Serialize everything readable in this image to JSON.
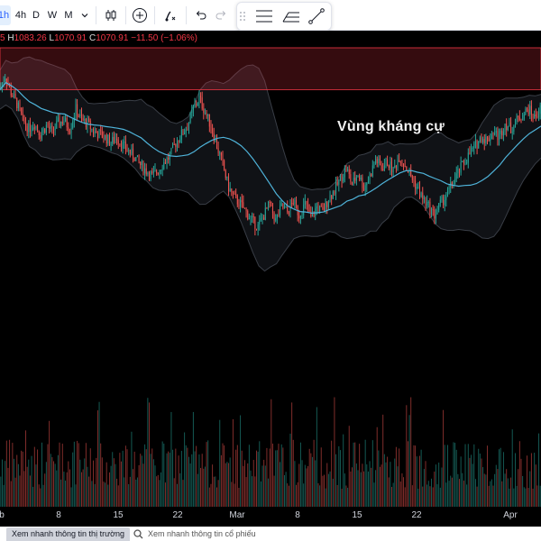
{
  "toolbar": {
    "timeframes": [
      {
        "label": "1h",
        "active": true
      },
      {
        "label": "4h",
        "active": false
      },
      {
        "label": "D",
        "active": false
      },
      {
        "label": "W",
        "active": false
      },
      {
        "label": "M",
        "active": false
      }
    ],
    "icons": [
      "chevron-down-icon",
      "candlestick-icon",
      "add-indicator-icon",
      "alert-icon",
      "undo-icon",
      "redo-icon"
    ]
  },
  "floating_toolbar": {
    "icons": [
      "drag-handle-icon",
      "horizontal-lines-icon",
      "fib-tool-icon",
      "trend-line-icon"
    ]
  },
  "ohlc": {
    "o_tail": "5",
    "h_key": "H",
    "h_val": "1083.26",
    "l_key": "L",
    "l_val": "1070.91",
    "c_key": "C",
    "c_val": "1070.91",
    "change": "−11.50 (−1.06%)"
  },
  "annotation": {
    "resistance_label": "Vùng kháng cự"
  },
  "colors": {
    "up": "#26a69a",
    "down": "#ef5350",
    "basis": "#4fb3d9",
    "zone": "#f23645"
  },
  "x_axis": {
    "labels": [
      "b",
      "8",
      "15",
      "22",
      "Mar",
      "8",
      "15",
      "22",
      "Apr"
    ]
  },
  "bottom_tabs": {
    "market": "Xem nhanh thông tin thị trường",
    "stock": "Xem nhanh thông tin cổ phiếu"
  },
  "chart_data": {
    "type": "candlestick",
    "ylim": [
      985,
      1090
    ],
    "resistance_zone": [
      1075,
      1090
    ],
    "closes": [
      1075,
      1080,
      1074,
      1070,
      1064,
      1061,
      1063,
      1059,
      1062,
      1060,
      1063,
      1064,
      1061,
      1068,
      1064,
      1063,
      1060,
      1059,
      1058,
      1056,
      1058,
      1055,
      1053,
      1051,
      1048,
      1046,
      1044,
      1046,
      1049,
      1051,
      1056,
      1059,
      1062,
      1068,
      1072,
      1067,
      1062,
      1055,
      1048,
      1040,
      1036,
      1034,
      1031,
      1028,
      1026,
      1030,
      1034,
      1028,
      1033,
      1031,
      1035,
      1030,
      1034,
      1029,
      1033,
      1031,
      1036,
      1039,
      1043,
      1047,
      1041,
      1045,
      1040,
      1044,
      1050,
      1047,
      1049,
      1046,
      1051,
      1048,
      1044,
      1040,
      1036,
      1033,
      1030,
      1034,
      1037,
      1041,
      1045,
      1049,
      1052,
      1055,
      1058,
      1057,
      1060,
      1058,
      1063,
      1061,
      1064,
      1066,
      1068,
      1065,
      1068
    ]
  }
}
